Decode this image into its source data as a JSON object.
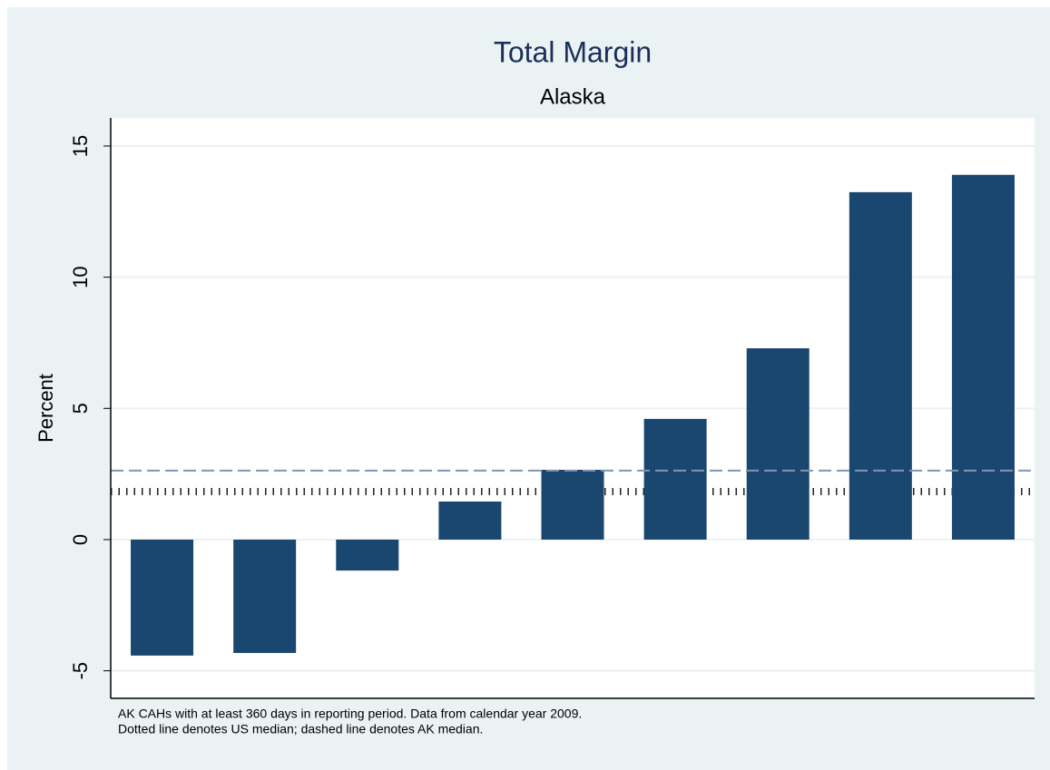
{
  "chart_data": {
    "type": "bar",
    "title": "Total Margin",
    "subtitle": "Alaska",
    "y_label": "Percent",
    "categories": [
      null,
      null,
      null,
      null,
      null,
      null,
      null,
      null,
      null
    ],
    "values": [
      -4.42,
      -4.32,
      -1.18,
      1.45,
      2.66,
      4.6,
      7.29,
      13.24,
      13.9
    ],
    "color": "#1a476f",
    "ylim": [
      -6.05,
      16.07
    ],
    "yticks": [
      -5,
      0,
      5,
      10,
      15
    ],
    "grid": true,
    "reference_lines": [
      {
        "value": 1.83,
        "style": "dotted",
        "color": "#222222"
      },
      {
        "value": 2.63,
        "style": "dashed",
        "color": "#7f96b4"
      }
    ],
    "notes": [
      "AK CAHs with at least 360 days in reporting period. Data from calendar year 2009.",
      "Dotted line denotes US median; dashed line denotes AK median."
    ]
  }
}
